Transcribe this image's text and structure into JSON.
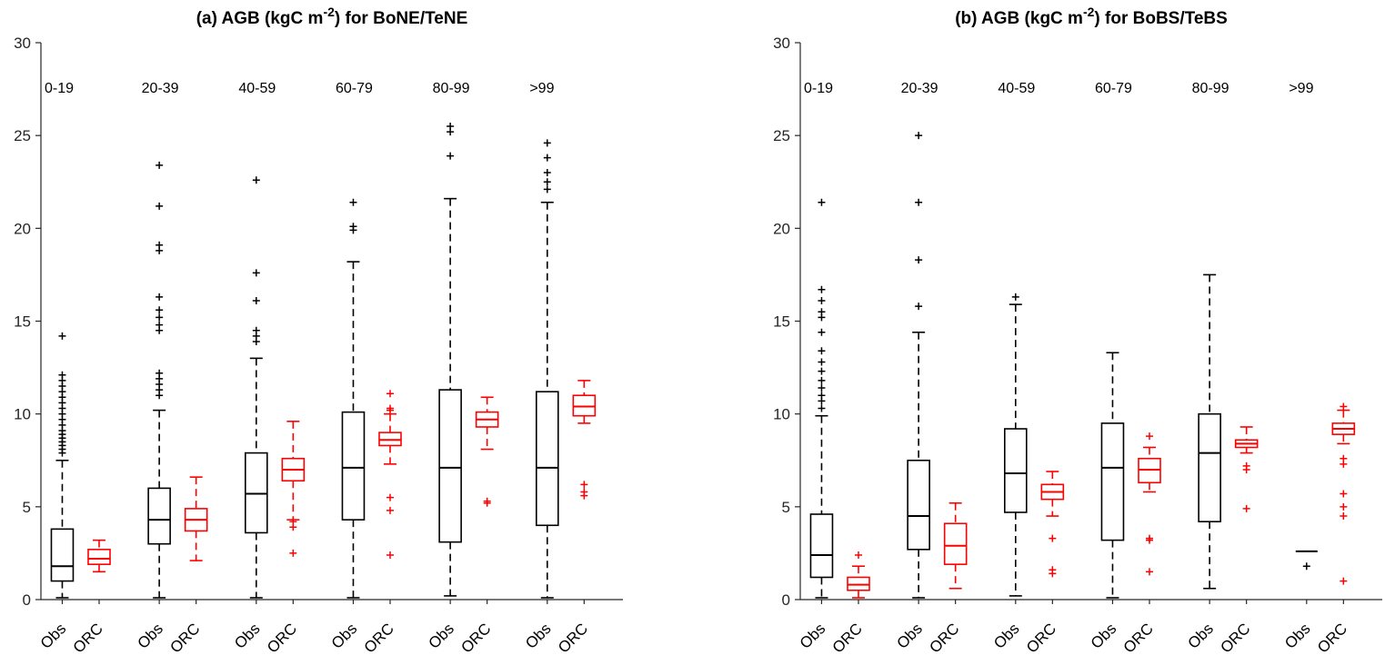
{
  "figure": {
    "background": "#ffffff",
    "axis_color": "#262626",
    "obs_color": "#000000",
    "orc_color": "#ff0000",
    "ylim": [
      0,
      30
    ],
    "yticks": [
      0,
      5,
      10,
      15,
      20,
      25,
      30
    ],
    "series_labels": [
      "Obs",
      "ORC"
    ],
    "group_labels": [
      "0-19",
      "20-39",
      "40-59",
      "60-79",
      "80-99",
      ">99"
    ]
  },
  "chart_data": [
    {
      "type": "boxplot",
      "panel": "a",
      "title": {
        "prefix": "(a) AGB (kgC m",
        "sup": "-2",
        "suffix": ") for BoNE/TeNE"
      },
      "ylim": [
        0,
        30
      ],
      "grid": false,
      "groups": [
        {
          "label": "0-19",
          "obs": {
            "whislo": 0.1,
            "q1": 1.0,
            "med": 1.8,
            "q3": 3.8,
            "whishi": 7.5,
            "outliers": [
              7.9,
              8.1,
              8.3,
              8.5,
              8.7,
              8.9,
              9.1,
              9.4,
              9.7,
              10.0,
              10.3,
              10.6,
              10.9,
              11.2,
              11.5,
              11.8,
              12.1,
              14.2
            ]
          },
          "orc": {
            "whislo": 1.5,
            "q1": 1.9,
            "med": 2.2,
            "q3": 2.7,
            "whishi": 3.2,
            "outliers": []
          }
        },
        {
          "label": "20-39",
          "obs": {
            "whislo": 0.1,
            "q1": 3.0,
            "med": 4.3,
            "q3": 6.0,
            "whishi": 10.2,
            "outliers": [
              11.0,
              11.3,
              11.6,
              11.9,
              12.2,
              14.5,
              14.8,
              15.2,
              15.6,
              16.3,
              18.8,
              19.1,
              21.2,
              23.4
            ]
          },
          "orc": {
            "whislo": 2.1,
            "q1": 3.7,
            "med": 4.3,
            "q3": 4.9,
            "whishi": 6.6,
            "outliers": []
          }
        },
        {
          "label": "40-59",
          "obs": {
            "whislo": 0.1,
            "q1": 3.6,
            "med": 5.7,
            "q3": 7.9,
            "whishi": 13.0,
            "outliers": [
              13.9,
              14.2,
              14.5,
              16.1,
              17.6,
              22.6
            ]
          },
          "orc": {
            "whislo": 4.3,
            "q1": 6.4,
            "med": 7.0,
            "q3": 7.6,
            "whishi": 9.6,
            "outliers": [
              2.5,
              3.9,
              4.2
            ]
          }
        },
        {
          "label": "60-79",
          "obs": {
            "whislo": 0.1,
            "q1": 4.3,
            "med": 7.1,
            "q3": 10.1,
            "whishi": 18.2,
            "outliers": [
              19.9,
              20.1,
              21.4
            ]
          },
          "orc": {
            "whislo": 7.3,
            "q1": 8.3,
            "med": 8.6,
            "q3": 9.0,
            "whishi": 10.0,
            "outliers": [
              11.1,
              10.3,
              10.2,
              5.5,
              4.8,
              2.4
            ]
          }
        },
        {
          "label": "80-99",
          "obs": {
            "whislo": 0.2,
            "q1": 3.1,
            "med": 7.1,
            "q3": 11.3,
            "whishi": 21.6,
            "outliers": [
              23.9,
              25.2,
              25.5
            ]
          },
          "orc": {
            "whislo": 8.1,
            "q1": 9.3,
            "med": 9.7,
            "q3": 10.1,
            "whishi": 10.9,
            "outliers": [
              5.2,
              5.3
            ]
          }
        },
        {
          "label": ">99",
          "obs": {
            "whislo": 0.1,
            "q1": 4.0,
            "med": 7.1,
            "q3": 11.2,
            "whishi": 21.4,
            "outliers": [
              22.1,
              22.5,
              23.0,
              23.8,
              24.6
            ]
          },
          "orc": {
            "whislo": 9.5,
            "q1": 9.9,
            "med": 10.4,
            "q3": 11.0,
            "whishi": 11.8,
            "outliers": [
              5.6,
              5.8,
              6.2
            ]
          }
        }
      ]
    },
    {
      "type": "boxplot",
      "panel": "b",
      "title": {
        "prefix": "(b) AGB (kgC m",
        "sup": "-2",
        "suffix": ") for BoBS/TeBS"
      },
      "ylim": [
        0,
        30
      ],
      "grid": false,
      "groups": [
        {
          "label": "0-19",
          "obs": {
            "whislo": 0.1,
            "q1": 1.2,
            "med": 2.4,
            "q3": 4.6,
            "whishi": 9.9,
            "outliers": [
              10.3,
              10.7,
              11.0,
              11.4,
              11.8,
              12.3,
              12.8,
              13.4,
              14.4,
              15.2,
              15.5,
              16.1,
              16.7,
              21.4
            ]
          },
          "orc": {
            "whislo": 0.1,
            "q1": 0.5,
            "med": 0.8,
            "q3": 1.2,
            "whishi": 1.8,
            "outliers": [
              2.4
            ]
          }
        },
        {
          "label": "20-39",
          "obs": {
            "whislo": 0.1,
            "q1": 2.7,
            "med": 4.5,
            "q3": 7.5,
            "whishi": 14.4,
            "outliers": [
              15.8,
              18.3,
              21.4,
              25.0
            ]
          },
          "orc": {
            "whislo": 0.6,
            "q1": 1.9,
            "med": 2.9,
            "q3": 4.1,
            "whishi": 5.2,
            "outliers": []
          }
        },
        {
          "label": "40-59",
          "obs": {
            "whislo": 0.2,
            "q1": 4.7,
            "med": 6.8,
            "q3": 9.2,
            "whishi": 15.9,
            "outliers": [
              16.3
            ]
          },
          "orc": {
            "whislo": 4.5,
            "q1": 5.4,
            "med": 5.8,
            "q3": 6.2,
            "whishi": 6.9,
            "outliers": [
              3.3,
              1.6,
              1.4
            ]
          }
        },
        {
          "label": "60-79",
          "obs": {
            "whislo": 0.1,
            "q1": 3.2,
            "med": 7.1,
            "q3": 9.5,
            "whishi": 13.3,
            "outliers": []
          },
          "orc": {
            "whislo": 5.8,
            "q1": 6.3,
            "med": 7.0,
            "q3": 7.6,
            "whishi": 8.2,
            "outliers": [
              8.8,
              3.3,
              3.2,
              1.5
            ]
          }
        },
        {
          "label": "80-99",
          "obs": {
            "whislo": 0.6,
            "q1": 4.2,
            "med": 7.9,
            "q3": 10.0,
            "whishi": 17.5,
            "outliers": []
          },
          "orc": {
            "whislo": 7.9,
            "q1": 8.2,
            "med": 8.4,
            "q3": 8.6,
            "whishi": 9.3,
            "outliers": [
              7.2,
              7.0,
              4.9
            ]
          }
        },
        {
          "label": ">99",
          "obs": {
            "whislo": 2.6,
            "q1": 2.6,
            "med": 2.6,
            "q3": 2.6,
            "whishi": 2.6,
            "outliers": [
              1.8
            ]
          },
          "orc": {
            "whislo": 8.4,
            "q1": 8.9,
            "med": 9.2,
            "q3": 9.5,
            "whishi": 10.2,
            "outliers": [
              10.4,
              7.6,
              7.3,
              5.7,
              5.0,
              4.5,
              1.0
            ]
          }
        }
      ]
    }
  ]
}
